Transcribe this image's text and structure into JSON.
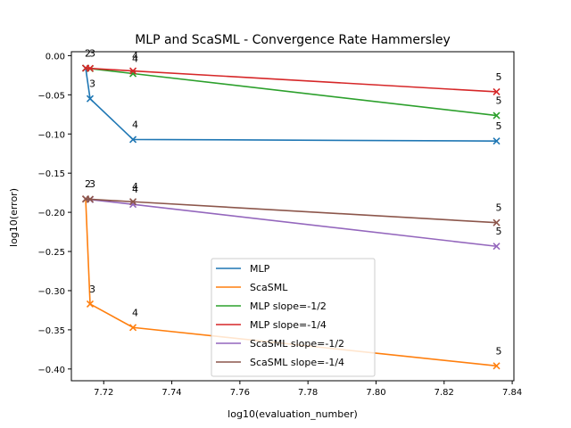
{
  "chart_data": {
    "type": "line",
    "title": "MLP and ScaSML - Convergence Rate Hammersley",
    "xlabel": "log10(evaluation_number)",
    "ylabel": "log10(error)",
    "xlim": [
      7.7105,
      7.8405
    ],
    "ylim": [
      -0.415,
      0.005
    ],
    "xticks": [
      7.72,
      7.74,
      7.76,
      7.78,
      7.8,
      7.82,
      7.84
    ],
    "xtick_labels": [
      "7.72",
      "7.74",
      "7.76",
      "7.78",
      "7.80",
      "7.82",
      "7.84"
    ],
    "yticks": [
      0.0,
      -0.05,
      -0.1,
      -0.15,
      -0.2,
      -0.25,
      -0.3,
      -0.35,
      -0.4
    ],
    "ytick_labels": [
      "0.00",
      "−0.05",
      "−0.10",
      "−0.15",
      "−0.20",
      "−0.25",
      "−0.30",
      "−0.35",
      "−0.40"
    ],
    "grid": false,
    "legend_position": "lower-center",
    "series": [
      {
        "name": "MLP",
        "color": "#1f77b4",
        "x": [
          7.7147,
          7.716,
          7.7286,
          7.8354
        ],
        "y": [
          -0.016,
          -0.055,
          -0.107,
          -0.109
        ]
      },
      {
        "name": "ScaSML",
        "color": "#ff7f0e",
        "x": [
          7.7147,
          7.716,
          7.7286,
          7.8354
        ],
        "y": [
          -0.183,
          -0.317,
          -0.347,
          -0.396
        ]
      },
      {
        "name": "MLP slope=-1/2",
        "color": "#2ca02c",
        "x": [
          7.7147,
          7.716,
          7.7286,
          7.8354
        ],
        "y": [
          -0.016,
          -0.0166,
          -0.0229,
          -0.0764
        ]
      },
      {
        "name": "MLP slope=-1/4",
        "color": "#d62728",
        "x": [
          7.7147,
          7.716,
          7.7286,
          7.8354
        ],
        "y": [
          -0.016,
          -0.0163,
          -0.0195,
          -0.0462
        ]
      },
      {
        "name": "ScaSML slope=-1/2",
        "color": "#9467bd",
        "x": [
          7.7147,
          7.716,
          7.7286,
          7.8354
        ],
        "y": [
          -0.183,
          -0.1837,
          -0.1899,
          -0.2434
        ]
      },
      {
        "name": "ScaSML slope=-1/4",
        "color": "#8c564b",
        "x": [
          7.7147,
          7.716,
          7.7286,
          7.8354
        ],
        "y": [
          -0.183,
          -0.1833,
          -0.1865,
          -0.2132
        ]
      }
    ],
    "annotations": [
      {
        "text": "2",
        "x": 7.7147,
        "y": -0.016
      },
      {
        "text": "3",
        "x": 7.716,
        "y": -0.016
      },
      {
        "text": "3",
        "x": 7.716,
        "y": -0.055
      },
      {
        "text": "4",
        "x": 7.7286,
        "y": -0.0195
      },
      {
        "text": "4",
        "x": 7.7286,
        "y": -0.0229
      },
      {
        "text": "4",
        "x": 7.7286,
        "y": -0.107
      },
      {
        "text": "5",
        "x": 7.8354,
        "y": -0.0462
      },
      {
        "text": "5",
        "x": 7.8354,
        "y": -0.0764
      },
      {
        "text": "5",
        "x": 7.8354,
        "y": -0.109
      },
      {
        "text": "2",
        "x": 7.7147,
        "y": -0.183
      },
      {
        "text": "3",
        "x": 7.716,
        "y": -0.183
      },
      {
        "text": "4",
        "x": 7.7286,
        "y": -0.1865
      },
      {
        "text": "4",
        "x": 7.7286,
        "y": -0.1899
      },
      {
        "text": "5",
        "x": 7.8354,
        "y": -0.2132
      },
      {
        "text": "5",
        "x": 7.8354,
        "y": -0.2434
      },
      {
        "text": "3",
        "x": 7.716,
        "y": -0.317
      },
      {
        "text": "4",
        "x": 7.7286,
        "y": -0.347
      },
      {
        "text": "5",
        "x": 7.8354,
        "y": -0.396
      }
    ]
  }
}
